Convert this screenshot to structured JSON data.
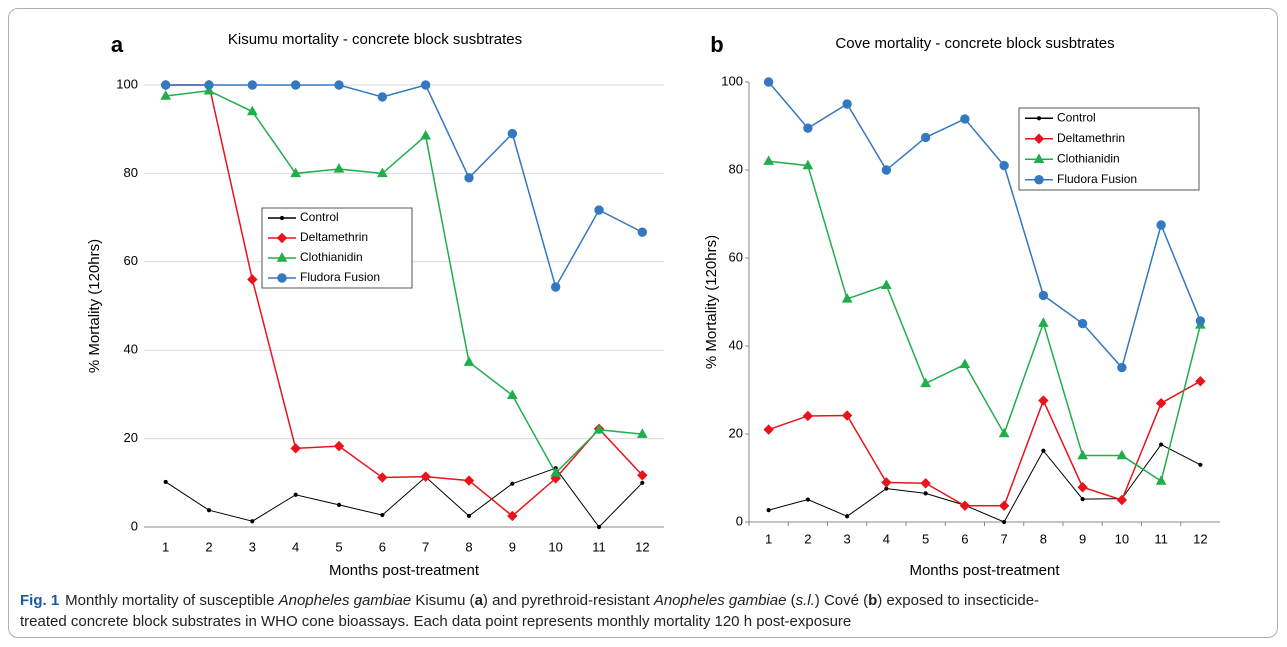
{
  "chart_data": [
    {
      "type": "line",
      "panel": "a",
      "title": "Kisumu mortality - concrete block susbtrates",
      "x_label": "Months post-treatment",
      "y_label": "% Mortality (120hrs)",
      "categories": [
        "1",
        "2",
        "3",
        "4",
        "5",
        "6",
        "7",
        "8",
        "9",
        "10",
        "11",
        "12"
      ],
      "ylim": [
        0,
        100
      ],
      "yticks": [
        0,
        20,
        40,
        60,
        80,
        100
      ],
      "grid": true,
      "legend": "center",
      "series": [
        {
          "name": "Control",
          "color": "#000000",
          "marker": "dot",
          "values": [
            10.2,
            3.8,
            1.3,
            7.3,
            5,
            2.7,
            11.3,
            2.5,
            9.8,
            13.3,
            0,
            10
          ]
        },
        {
          "name": "Deltamethrin",
          "color": "#e8141b",
          "marker": "diamond",
          "values": [
            100,
            100,
            56,
            17.8,
            18.3,
            11.2,
            11.4,
            10.5,
            2.5,
            11,
            22.2,
            11.7
          ]
        },
        {
          "name": "Clothianidin",
          "color": "#1fae4b",
          "marker": "triangle",
          "values": [
            97.5,
            98.7,
            94,
            80,
            81,
            80,
            88.5,
            37.3,
            29.8,
            12.2,
            22,
            21
          ]
        },
        {
          "name": "Fludora Fusion",
          "color": "#3478c0",
          "marker": "circle",
          "values": [
            100,
            100,
            100,
            100,
            100,
            97.3,
            100,
            79,
            89,
            54.3,
            71.7,
            66.7
          ]
        }
      ]
    },
    {
      "type": "line",
      "panel": "b",
      "title": "Cove mortality - concrete block susbtrates",
      "x_label": "Months post-treatment",
      "y_label": "% Mortality (120hrs)",
      "categories": [
        "1",
        "2",
        "3",
        "4",
        "5",
        "6",
        "7",
        "8",
        "9",
        "10",
        "11",
        "12"
      ],
      "ylim": [
        0,
        100
      ],
      "yticks": [
        0,
        20,
        40,
        60,
        80,
        100
      ],
      "grid": false,
      "legend": "upper right",
      "series": [
        {
          "name": "Control",
          "color": "#000000",
          "marker": "dot",
          "values": [
            2.7,
            5.1,
            1.3,
            7.6,
            6.5,
            3.8,
            0,
            16.2,
            5.2,
            5.3,
            17.6,
            13
          ]
        },
        {
          "name": "Deltamethrin",
          "color": "#e8141b",
          "marker": "diamond",
          "values": [
            21,
            24.1,
            24.2,
            9,
            8.8,
            3.7,
            3.7,
            27.6,
            7.9,
            5,
            27,
            32
          ]
        },
        {
          "name": "Clothianidin",
          "color": "#1fae4b",
          "marker": "triangle",
          "values": [
            82,
            81,
            50.7,
            53.8,
            31.5,
            35.8,
            20.1,
            45.2,
            15.1,
            15.1,
            9.3,
            44.8
          ]
        },
        {
          "name": "Fludora Fusion",
          "color": "#3478c0",
          "marker": "circle",
          "values": [
            100,
            89.5,
            95,
            80,
            87.4,
            91.6,
            81,
            51.5,
            45.1,
            35.1,
            67.5,
            45.7
          ]
        }
      ]
    }
  ],
  "caption": {
    "label": "Fig. 1",
    "parts": [
      "Monthly mortality of susceptible ",
      "Anopheles gambiae",
      " Kisumu (",
      "a",
      ") and pyrethroid-resistant ",
      "Anopheles gambiae",
      " (",
      "s.l.",
      ") Cové (",
      "b",
      ") exposed to insecticide-treated concrete block substrates in WHO cone bioassays. Each data point represents monthly mortality 120 h post-exposure"
    ]
  }
}
